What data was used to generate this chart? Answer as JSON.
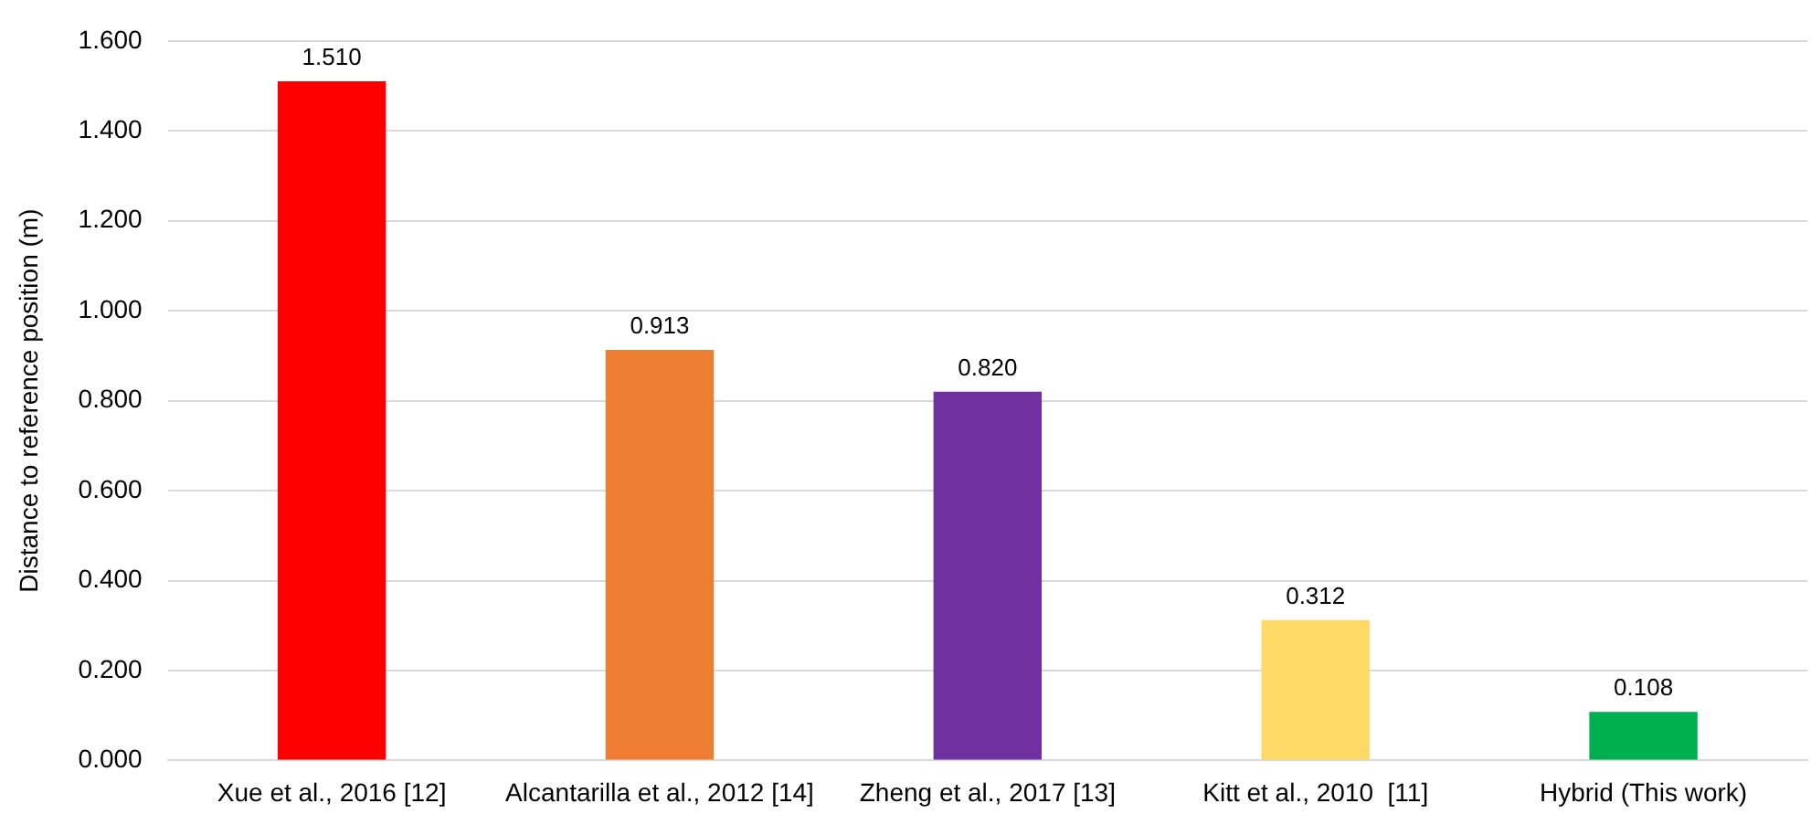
{
  "chart_data": {
    "type": "bar",
    "ylabel": "Distance to reference position (m)",
    "categories": [
      "Xue et al., 2016 [12]",
      "Alcantarilla et al., 2012 [14]",
      "Zheng et al., 2017 [13]",
      "Kitt et al., 2010  [11]",
      "Hybrid (This work)"
    ],
    "values": [
      1.51,
      0.913,
      0.82,
      0.312,
      0.108
    ],
    "colors": [
      "#ff0000",
      "#ed7d31",
      "#7030a0",
      "#ffd966",
      "#00b050"
    ],
    "value_labels": [
      "1.510",
      "0.913",
      "0.820",
      "0.312",
      "0.108"
    ],
    "ylim": [
      0,
      1.6
    ],
    "yticks": [
      {
        "value": 0,
        "label": "0.000"
      },
      {
        "value": 0.2,
        "label": "0.200"
      },
      {
        "value": 0.4,
        "label": "0.400"
      },
      {
        "value": 0.6,
        "label": "0.600"
      },
      {
        "value": 0.8,
        "label": "0.800"
      },
      {
        "value": 1,
        "label": "1.000"
      },
      {
        "value": 1.2,
        "label": "1.200"
      },
      {
        "value": 1.4,
        "label": "1.400"
      },
      {
        "value": 1.6,
        "label": "1.600"
      }
    ],
    "grid": "y",
    "legend": false
  }
}
